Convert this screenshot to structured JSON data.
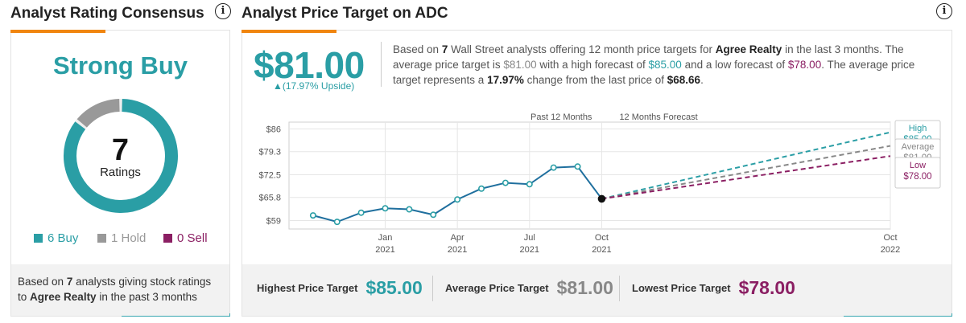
{
  "rating_panel": {
    "title": "Analyst Rating Consensus",
    "consensus": "Strong Buy",
    "total": "7",
    "total_label": "Ratings",
    "legend": [
      {
        "label": "6 Buy",
        "color": "#2a9ea5"
      },
      {
        "label": "1 Hold",
        "color": "#999999"
      },
      {
        "label": "0 Sell",
        "color": "#8b1f63"
      }
    ],
    "donut": {
      "buy": 6,
      "hold": 1,
      "sell": 0,
      "colors": {
        "buy": "#2a9ea5",
        "hold": "#999999",
        "sell": "#8b1f63"
      }
    },
    "footer": {
      "prefix": "Based on",
      "count": "7",
      "middle": "analysts giving stock ratings to",
      "company": "Agree Realty",
      "suffix": "in the past 3 months"
    }
  },
  "target_panel": {
    "title": "Analyst Price Target on ADC",
    "price": "$81.00",
    "upside": "▲(17.97% Upside)",
    "summary": {
      "s1": "Based on",
      "count": "7",
      "s2": "Wall Street analysts offering 12 month price targets for",
      "company": "Agree Realty",
      "s3": "in the last 3 months. The average price target is",
      "avg": "$81.00",
      "s4": "with a high forecast of",
      "high": "$85.00",
      "s5": "and a low forecast of",
      "low": "$78.00",
      "s6": ". The average price target represents a",
      "pct": "17.97%",
      "s7": "change from the last price of",
      "last": "$68.66",
      "s8": "."
    },
    "footer": {
      "highest_label": "Highest Price Target",
      "highest": "$85.00",
      "average_label": "Average Price Target",
      "average": "$81.00",
      "lowest_label": "Lowest Price Target",
      "lowest": "$78.00"
    }
  },
  "chart_data": {
    "type": "line",
    "yticks": [
      "$86",
      "$79.3",
      "$72.5",
      "$65.8",
      "$59"
    ],
    "ytick_values": [
      86,
      79.3,
      72.5,
      65.8,
      59
    ],
    "ylim": [
      56.5,
      88
    ],
    "xticks": [
      {
        "month": "Jan",
        "year": "2021",
        "t": 3
      },
      {
        "month": "Apr",
        "year": "2021",
        "t": 6
      },
      {
        "month": "Jul",
        "year": "2021",
        "t": 9
      },
      {
        "month": "Oct",
        "year": "2021",
        "t": 12
      },
      {
        "month": "Oct",
        "year": "2022",
        "t": 24
      }
    ],
    "past_label": "Past 12 Months",
    "forecast_label": "12 Months Forecast",
    "series": [
      {
        "t": 0,
        "v": 60.5
      },
      {
        "t": 1,
        "v": 58.6
      },
      {
        "t": 2,
        "v": 61.3
      },
      {
        "t": 3,
        "v": 62.6
      },
      {
        "t": 4,
        "v": 62.3
      },
      {
        "t": 5,
        "v": 60.7
      },
      {
        "t": 6,
        "v": 65.2
      },
      {
        "t": 7,
        "v": 68.4
      },
      {
        "t": 8,
        "v": 70.1
      },
      {
        "t": 9,
        "v": 69.7
      },
      {
        "t": 10,
        "v": 74.6
      },
      {
        "t": 11,
        "v": 74.9
      },
      {
        "t": 12,
        "v": 65.4
      }
    ],
    "forecasts": [
      {
        "name": "High",
        "label": "High",
        "value_label": "$85.00",
        "value": 85,
        "color": "#2a9ea5"
      },
      {
        "name": "Average",
        "label": "Average",
        "value_label": "$81.00",
        "value": 81,
        "color": "#888888"
      },
      {
        "name": "Low",
        "label": "Low",
        "value_label": "$78.00",
        "value": 78,
        "color": "#8b1f63"
      }
    ],
    "line_color": "#1f6f9e",
    "grid": true
  }
}
